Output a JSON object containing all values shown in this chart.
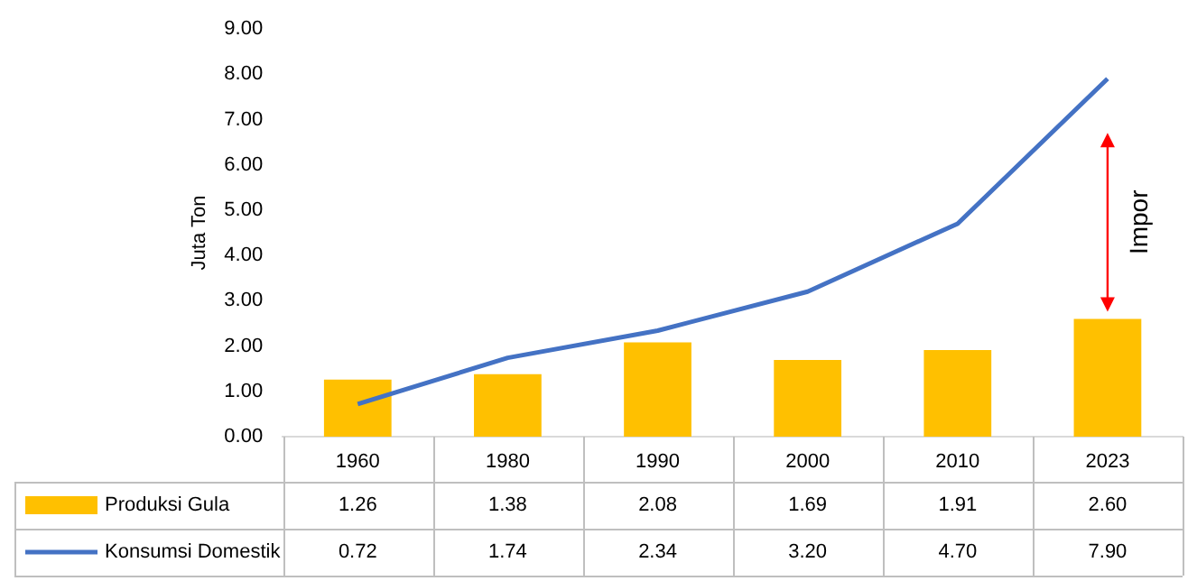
{
  "chart_data": {
    "type": "bar",
    "ylabel": "Juta Ton",
    "categories": [
      "1960",
      "1980",
      "1990",
      "2000",
      "2010",
      "2023"
    ],
    "series": [
      {
        "name": "Produksi Gula",
        "color": "#ffc000",
        "values": [
          1.26,
          1.38,
          2.08,
          1.69,
          1.91,
          2.6
        ],
        "value_labels": [
          "1.26",
          "1.38",
          "2.08",
          "1.69",
          "1.91",
          "2.60"
        ]
      },
      {
        "name": "Konsumsi Domestik",
        "type": "line",
        "color": "#4472c4",
        "values": [
          0.72,
          1.74,
          2.34,
          3.2,
          4.7,
          7.9
        ],
        "value_labels": [
          "0.72",
          "1.74",
          "2.34",
          "3.20",
          "4.70",
          "7.90"
        ]
      }
    ],
    "ylim": [
      0,
      9
    ],
    "yticks": [
      {
        "value": 0,
        "label": "0.00"
      },
      {
        "value": 1,
        "label": "1.00"
      },
      {
        "value": 2,
        "label": "2.00"
      },
      {
        "value": 3,
        "label": "3.00"
      },
      {
        "value": 4,
        "label": "4.00"
      },
      {
        "value": 5,
        "label": "5.00"
      },
      {
        "value": 6,
        "label": "6.00"
      },
      {
        "value": 7,
        "label": "7.00"
      },
      {
        "value": 8,
        "label": "8.00"
      },
      {
        "value": 9,
        "label": "9.00"
      }
    ],
    "annotations": [
      "Impor"
    ],
    "legend": "bottom",
    "marker": "none",
    "line_style": "solid"
  }
}
